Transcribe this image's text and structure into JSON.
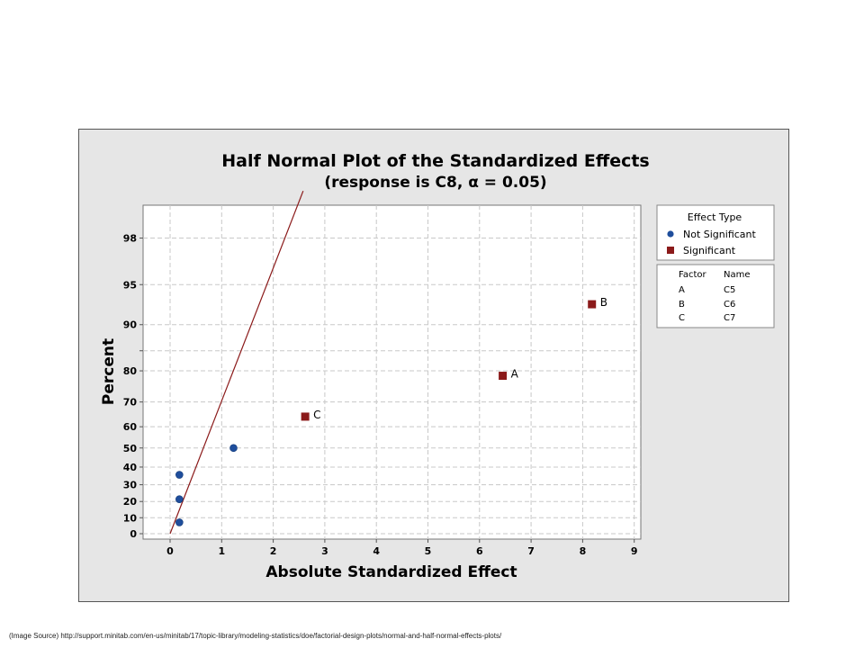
{
  "chart_data": {
    "type": "scatter",
    "title": "Half Normal Plot of the Standardized Effects",
    "subtitle": "(response is C8, α = 0.05)",
    "xlabel": "Absolute Standardized Effect",
    "ylabel": "Percent",
    "xlim": [
      -0.5,
      9.2
    ],
    "x_ticks": [
      0,
      1,
      2,
      3,
      4,
      5,
      6,
      7,
      8,
      9
    ],
    "y_ticks": [
      0,
      10,
      20,
      30,
      40,
      50,
      60,
      70,
      80,
      85,
      90,
      95,
      98
    ],
    "y_tick_labels": [
      "0",
      "10",
      "20",
      "30",
      "40",
      "50",
      "60",
      "70",
      "80",
      "",
      "90",
      "95",
      "98"
    ],
    "y_scale": "half-normal",
    "grid": true,
    "series": [
      {
        "name": "Not Significant",
        "color": "#1f4e9c",
        "marker": "circle",
        "points": [
          {
            "x": 0.18,
            "y": 7.1,
            "label": ""
          },
          {
            "x": 0.18,
            "y": 21.4,
            "label": ""
          },
          {
            "x": 0.18,
            "y": 35.7,
            "label": ""
          },
          {
            "x": 1.23,
            "y": 50.0,
            "label": ""
          }
        ]
      },
      {
        "name": "Significant",
        "color": "#8b1a1a",
        "marker": "square",
        "points": [
          {
            "x": 2.62,
            "y": 64.3,
            "label": "C"
          },
          {
            "x": 6.45,
            "y": 78.6,
            "label": "A"
          },
          {
            "x": 8.18,
            "y": 92.9,
            "label": "B"
          }
        ]
      }
    ],
    "reference_line": {
      "color": "#8b1a1a",
      "x_at_0": 0.0,
      "x_at_top": 2.58,
      "y_top": 99.3
    },
    "legend": {
      "title": "Effect Type",
      "placement": "right",
      "items": [
        "Not Significant",
        "Significant"
      ]
    },
    "factor_table": {
      "headers": [
        "Factor",
        "Name"
      ],
      "rows": [
        [
          "A",
          "C5"
        ],
        [
          "B",
          "C6"
        ],
        [
          "C",
          "C7"
        ]
      ]
    }
  },
  "source_note": "(Image Source) http://support.minitab.com/en-us/minitab/17/topic-library/modeling-statistics/doe/factorial-design-plots/normal-and-half-normal-effects-plots/"
}
